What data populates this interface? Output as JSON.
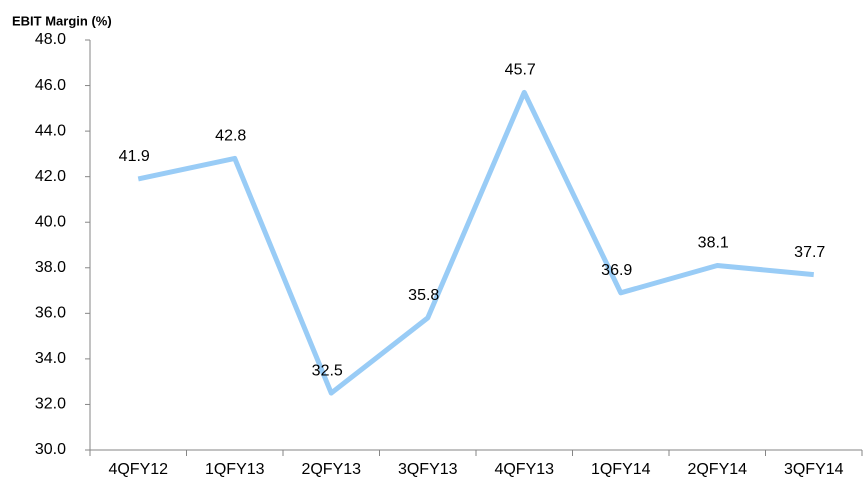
{
  "chart_data": {
    "type": "line",
    "title": "EBIT Margin (%)",
    "categories": [
      "4QFY12",
      "1QFY13",
      "2QFY13",
      "3QFY13",
      "4QFY13",
      "1QFY14",
      "2QFY14",
      "3QFY14"
    ],
    "values": [
      41.9,
      42.8,
      32.5,
      35.8,
      45.7,
      36.9,
      38.1,
      37.7
    ],
    "color": "#99ccf6",
    "ylim": [
      30,
      48
    ],
    "yticks": [
      {
        "value": 30,
        "label": "30.0"
      },
      {
        "value": 32,
        "label": "32.0"
      },
      {
        "value": 34,
        "label": "34.0"
      },
      {
        "value": 36,
        "label": "36.0"
      },
      {
        "value": 38,
        "label": "38.0"
      },
      {
        "value": 40,
        "label": "40.0"
      },
      {
        "value": 42,
        "label": "42.0"
      },
      {
        "value": 44,
        "label": "44.0"
      },
      {
        "value": 46,
        "label": "46.0"
      },
      {
        "value": 48,
        "label": "48.0"
      }
    ],
    "grid": false
  }
}
